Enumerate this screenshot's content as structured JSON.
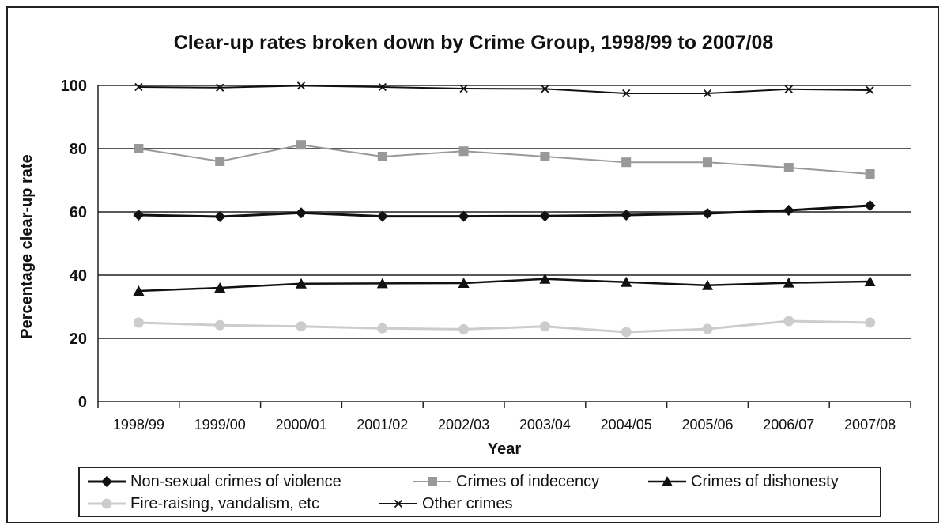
{
  "chart_data": {
    "type": "line",
    "title": "Clear-up rates broken down by Crime Group, 1998/99 to 2007/08",
    "xlabel": "Year",
    "ylabel": "Percentage clear-up rate",
    "ylim": [
      0,
      100
    ],
    "yticks": [
      "0",
      "20",
      "40",
      "60",
      "80",
      "100"
    ],
    "grid": "horizontal",
    "legend_position": "bottom",
    "categories": [
      "1998/99",
      "1999/00",
      "2000/01",
      "2001/02",
      "2002/03",
      "2003/04",
      "2004/05",
      "2005/06",
      "2006/07",
      "2007/08"
    ],
    "series": [
      {
        "name": "Non-sexual crimes of violence",
        "color": "#111111",
        "marker": "diamond",
        "line_width": 3,
        "values": [
          59,
          58.5,
          59.7,
          58.6,
          58.6,
          58.7,
          59,
          59.5,
          60.5,
          62
        ]
      },
      {
        "name": "Crimes of indecency",
        "color": "#999999",
        "marker": "square",
        "line_width": 2,
        "values": [
          80,
          76,
          81.2,
          77.5,
          79.2,
          77.5,
          75.7,
          75.7,
          74,
          72
        ]
      },
      {
        "name": "Crimes of dishonesty",
        "color": "#111111",
        "marker": "triangle",
        "line_width": 2.5,
        "values": [
          35,
          36,
          37.3,
          37.4,
          37.5,
          38.8,
          37.8,
          36.8,
          37.6,
          38
        ]
      },
      {
        "name": "Fire-raising, vandalism, etc",
        "color": "#cccccc",
        "marker": "circle",
        "line_width": 3,
        "values": [
          25,
          24.2,
          23.8,
          23.2,
          22.9,
          23.8,
          22,
          23,
          25.5,
          25
        ]
      },
      {
        "name": "Other crimes",
        "color": "#111111",
        "marker": "x",
        "line_width": 2,
        "values": [
          99.5,
          99.3,
          99.9,
          99.5,
          99,
          98.9,
          97.5,
          97.5,
          98.8,
          98.5
        ]
      }
    ]
  }
}
